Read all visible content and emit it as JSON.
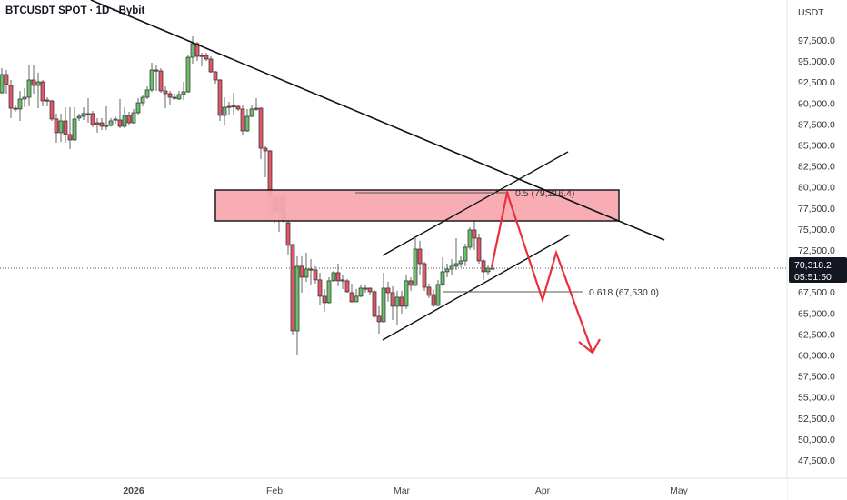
{
  "header": {
    "title": "BTCUSDT SPOT · 1D · Bybit"
  },
  "price_axis": {
    "currency": "USDT"
  },
  "last_price": {
    "value": "70,318.2",
    "countdown": "05:51:50",
    "bg_color": "#131722"
  },
  "colors": {
    "up": "#6cbd6c",
    "down": "#e1576a",
    "zone": "#f8a9b0",
    "projection": "#e8303f"
  },
  "annotations": {
    "fib_05": "0.5 (79,216.4)",
    "fib_0618": "0.618 (67,530.0)"
  },
  "chart_data": {
    "type": "candlestick",
    "title": "BTCUSDT SPOT · 1D · Bybit",
    "ylabel": "USDT",
    "ylim": [
      46000,
      100500
    ],
    "grid": false,
    "y_ticks": [
      "97,500.0",
      "95,000.0",
      "92,500.0",
      "90,000.0",
      "87,500.0",
      "85,000.0",
      "82,500.0",
      "80,000.0",
      "77,500.0",
      "75,000.0",
      "72,500.0",
      "70,000.0",
      "67,500.0",
      "65,000.0",
      "62,500.0",
      "60,000.0",
      "57,500.0",
      "55,000.0",
      "52,500.0",
      "50,000.0",
      "47,500.0"
    ],
    "x_ticks": [
      {
        "label": "2026",
        "date": "2026-01-01",
        "bold": true
      },
      {
        "label": "Feb",
        "date": "2026-02-01"
      },
      {
        "label": "Mar",
        "date": "2026-03-01"
      },
      {
        "label": "Apr",
        "date": "2026-04-01"
      },
      {
        "label": "May",
        "date": "2026-05-01"
      }
    ],
    "columns": [
      "date",
      "open",
      "high",
      "low",
      "close"
    ],
    "candles": [
      [
        "2025-12-03",
        91220,
        94150,
        91120,
        93390
      ],
      [
        "2025-12-04",
        93390,
        93930,
        91120,
        92200
      ],
      [
        "2025-12-05",
        92090,
        92740,
        88200,
        89380
      ],
      [
        "2025-12-06",
        89380,
        89820,
        88950,
        89300
      ],
      [
        "2025-12-07",
        89280,
        91440,
        87870,
        90470
      ],
      [
        "2025-12-08",
        90470,
        91760,
        89490,
        90680
      ],
      [
        "2025-12-09",
        90680,
        94580,
        89600,
        92740
      ],
      [
        "2025-12-10",
        92740,
        94580,
        91120,
        92090
      ],
      [
        "2025-12-11",
        92090,
        93600,
        89380,
        92520
      ],
      [
        "2025-12-12",
        92520,
        92740,
        89600,
        90250
      ],
      [
        "2025-12-13",
        90360,
        90680,
        89600,
        90250
      ],
      [
        "2025-12-14",
        90250,
        90360,
        87870,
        88090
      ],
      [
        "2025-12-15",
        88090,
        88740,
        85270,
        86470
      ],
      [
        "2025-12-16",
        86470,
        88740,
        85380,
        87870
      ],
      [
        "2025-12-17",
        87870,
        89490,
        85270,
        86250
      ],
      [
        "2025-12-18",
        86250,
        89490,
        84510,
        85600
      ],
      [
        "2025-12-19",
        85600,
        89490,
        85490,
        88090
      ],
      [
        "2025-12-20",
        88200,
        88740,
        87870,
        88410
      ],
      [
        "2025-12-21",
        88410,
        89490,
        87980,
        88740
      ],
      [
        "2025-12-22",
        88740,
        90570,
        87650,
        88700
      ],
      [
        "2025-12-23",
        88740,
        89060,
        87110,
        87440
      ],
      [
        "2025-12-24",
        87650,
        88200,
        86470,
        87440
      ],
      [
        "2025-12-25",
        87650,
        88200,
        86790,
        87220
      ],
      [
        "2025-12-26",
        87330,
        89600,
        86790,
        87300
      ],
      [
        "2025-12-27",
        87330,
        88200,
        87200,
        87870
      ],
      [
        "2025-12-28",
        87980,
        88410,
        87550,
        88090
      ],
      [
        "2025-12-29",
        87980,
        90470,
        87000,
        87220
      ],
      [
        "2025-12-30",
        87220,
        89490,
        87000,
        88520
      ],
      [
        "2025-12-31",
        88520,
        88950,
        87330,
        87650
      ],
      [
        "2026-01-01",
        87650,
        89280,
        87550,
        88840
      ],
      [
        "2026-01-02",
        88840,
        90570,
        88630,
        90030
      ],
      [
        "2026-01-03",
        90030,
        90900,
        89600,
        90680
      ],
      [
        "2026-01-04",
        90680,
        91980,
        90470,
        91550
      ],
      [
        "2026-01-05",
        91550,
        94800,
        91330,
        93930
      ],
      [
        "2026-01-06",
        93930,
        94470,
        91440,
        93850
      ],
      [
        "2026-01-07",
        93820,
        94150,
        91220,
        91440
      ],
      [
        "2026-01-08",
        91440,
        91980,
        89380,
        91120
      ],
      [
        "2026-01-09",
        91120,
        91440,
        89820,
        90680
      ],
      [
        "2026-01-10",
        90680,
        91120,
        90360,
        90600
      ],
      [
        "2026-01-11",
        90470,
        91440,
        90360,
        91010
      ],
      [
        "2026-01-12",
        91010,
        92520,
        90360,
        91330
      ],
      [
        "2026-01-13",
        91330,
        95770,
        91220,
        95440
      ],
      [
        "2026-01-14",
        95440,
        97930,
        94690,
        97070
      ],
      [
        "2026-01-15",
        97070,
        97280,
        95010,
        95550
      ],
      [
        "2026-01-16",
        95660,
        95980,
        94360,
        95600
      ],
      [
        "2026-01-17",
        95660,
        95980,
        95010,
        95230
      ],
      [
        "2026-01-18",
        95230,
        95550,
        93600,
        93710
      ],
      [
        "2026-01-19",
        93710,
        93820,
        92310,
        92740
      ],
      [
        "2026-01-20",
        92740,
        92850,
        87870,
        88520
      ],
      [
        "2026-01-21",
        88520,
        90680,
        87440,
        89490
      ],
      [
        "2026-01-22",
        89600,
        90140,
        88520,
        89550
      ],
      [
        "2026-01-23",
        89600,
        91220,
        88520,
        89650
      ],
      [
        "2026-01-24",
        89600,
        89820,
        89060,
        89280
      ],
      [
        "2026-01-25",
        89280,
        89820,
        86250,
        86680
      ],
      [
        "2026-01-26",
        86680,
        89280,
        86570,
        88410
      ],
      [
        "2026-01-27",
        88410,
        89820,
        88300,
        89280
      ],
      [
        "2026-01-28",
        89380,
        90570,
        89060,
        89330
      ],
      [
        "2026-01-29",
        89380,
        89490,
        83330,
        84620
      ],
      [
        "2026-01-30",
        84620,
        84840,
        81160,
        84300
      ],
      [
        "2026-01-31",
        84300,
        84410,
        75970,
        78780
      ],
      [
        "2026-02-01",
        78780,
        79540,
        75750,
        77050
      ],
      [
        "2026-02-02",
        77050,
        79320,
        74670,
        78780
      ],
      [
        "2026-02-03",
        78780,
        79320,
        75750,
        75970
      ],
      [
        "2026-02-04",
        75750,
        76290,
        71970,
        73050
      ],
      [
        "2026-02-05",
        73150,
        73260,
        62330,
        62870
      ],
      [
        "2026-02-06",
        62870,
        71750,
        60060,
        70560
      ],
      [
        "2026-02-07",
        70560,
        71750,
        67420,
        69260
      ],
      [
        "2026-02-08",
        69260,
        72180,
        68720,
        70230
      ],
      [
        "2026-02-09",
        70230,
        71420,
        68400,
        70200
      ],
      [
        "2026-02-10",
        70130,
        70560,
        68500,
        68940
      ],
      [
        "2026-02-11",
        68940,
        69800,
        65900,
        66990
      ],
      [
        "2026-02-12",
        66990,
        67850,
        65150,
        66230
      ],
      [
        "2026-02-13",
        66230,
        69260,
        66120,
        68830
      ],
      [
        "2026-02-14",
        68830,
        70020,
        68720,
        69800
      ],
      [
        "2026-02-15",
        69800,
        70880,
        68180,
        68830
      ],
      [
        "2026-02-16",
        68940,
        69590,
        67850,
        68900
      ],
      [
        "2026-02-17",
        68830,
        69050,
        67420,
        67530
      ],
      [
        "2026-02-18",
        67420,
        68500,
        66230,
        66340
      ],
      [
        "2026-02-19",
        66340,
        67850,
        66300,
        66990
      ],
      [
        "2026-02-20",
        66990,
        68400,
        66880,
        67960
      ],
      [
        "2026-02-21",
        67960,
        68400,
        67420,
        67900
      ],
      [
        "2026-02-22",
        67960,
        68000,
        67100,
        67530
      ],
      [
        "2026-02-23",
        67530,
        67740,
        64390,
        64610
      ],
      [
        "2026-02-24",
        64610,
        65800,
        62550,
        63960
      ],
      [
        "2026-02-25",
        63960,
        69800,
        63850,
        67960
      ],
      [
        "2026-02-26",
        67960,
        68720,
        66340,
        67420
      ],
      [
        "2026-02-27",
        67420,
        68180,
        64170,
        65800
      ],
      [
        "2026-02-28",
        65800,
        67640,
        63520,
        66880
      ],
      [
        "2026-03-01",
        66880,
        67640,
        64930,
        65800
      ],
      [
        "2026-03-02",
        65800,
        69590,
        65470,
        68830
      ],
      [
        "2026-03-03",
        68830,
        69260,
        67640,
        68290
      ],
      [
        "2026-03-04",
        68290,
        73910,
        68180,
        72610
      ],
      [
        "2026-03-05",
        72610,
        73590,
        69590,
        70880
      ],
      [
        "2026-03-06",
        70880,
        71100,
        67640,
        68070
      ],
      [
        "2026-03-07",
        68070,
        68500,
        66770,
        67100
      ],
      [
        "2026-03-08",
        67200,
        67850,
        65690,
        65900
      ],
      [
        "2026-03-09",
        65900,
        68940,
        65800,
        68400
      ],
      [
        "2026-03-10",
        68400,
        71640,
        68180,
        69910
      ],
      [
        "2026-03-11",
        69910,
        70880,
        69260,
        70230
      ],
      [
        "2026-03-12",
        70230,
        71420,
        69480,
        70560
      ],
      [
        "2026-03-13",
        70560,
        73910,
        70130,
        70880
      ],
      [
        "2026-03-14",
        70880,
        71750,
        70450,
        71210
      ],
      [
        "2026-03-15",
        71210,
        73260,
        70560,
        72830
      ],
      [
        "2026-03-16",
        72830,
        75210,
        72510,
        74890
      ],
      [
        "2026-03-17",
        74890,
        75970,
        72510,
        73910
      ],
      [
        "2026-03-18",
        73910,
        74450,
        70880,
        71210
      ],
      [
        "2026-03-19",
        71210,
        71420,
        68940,
        69910
      ],
      [
        "2026-03-20",
        69910,
        70670,
        69480,
        70340
      ],
      [
        "2026-03-21",
        70340,
        70560,
        70230,
        70318.2
      ]
    ]
  }
}
